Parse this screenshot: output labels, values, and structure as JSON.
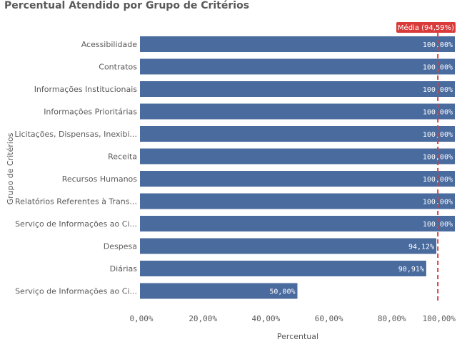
{
  "chart_data": {
    "type": "bar",
    "orientation": "horizontal",
    "title": "Percentual Atendido por Grupo de Critérios",
    "xlabel": "Percentual",
    "ylabel": "Grupo de Critérios",
    "xlim": [
      0,
      100
    ],
    "x_ticks": [
      "0,00%",
      "20,00%",
      "40,00%",
      "60,00%",
      "80,00%",
      "100,00%"
    ],
    "grid": false,
    "categories": [
      "Acessibilidade",
      "Contratos",
      "Informações Institucionais",
      "Informações Prioritárias",
      "Licitações, Dispensas, Inexibi...",
      "Receita",
      "Recursos Humanos",
      "Relatórios Referentes à Trans...",
      "Serviço de Informações ao Ci...",
      "Despesa",
      "Diárias",
      "Serviço de Informações ao Ci..."
    ],
    "values": [
      100,
      100,
      100,
      100,
      100,
      100,
      100,
      100,
      100,
      94.12,
      90.91,
      50
    ],
    "value_labels": [
      "100,00%",
      "100,00%",
      "100,00%",
      "100,00%",
      "100,00%",
      "100,00%",
      "100,00%",
      "100,00%",
      "100,00%",
      "94,12%",
      "90,91%",
      "50,00%"
    ],
    "reference_line": {
      "label": "Média (94,59%)",
      "value": 94.59
    },
    "colors": {
      "bar": "#4a6b9e",
      "reference": "#d93b3b",
      "text": "#595959"
    }
  }
}
